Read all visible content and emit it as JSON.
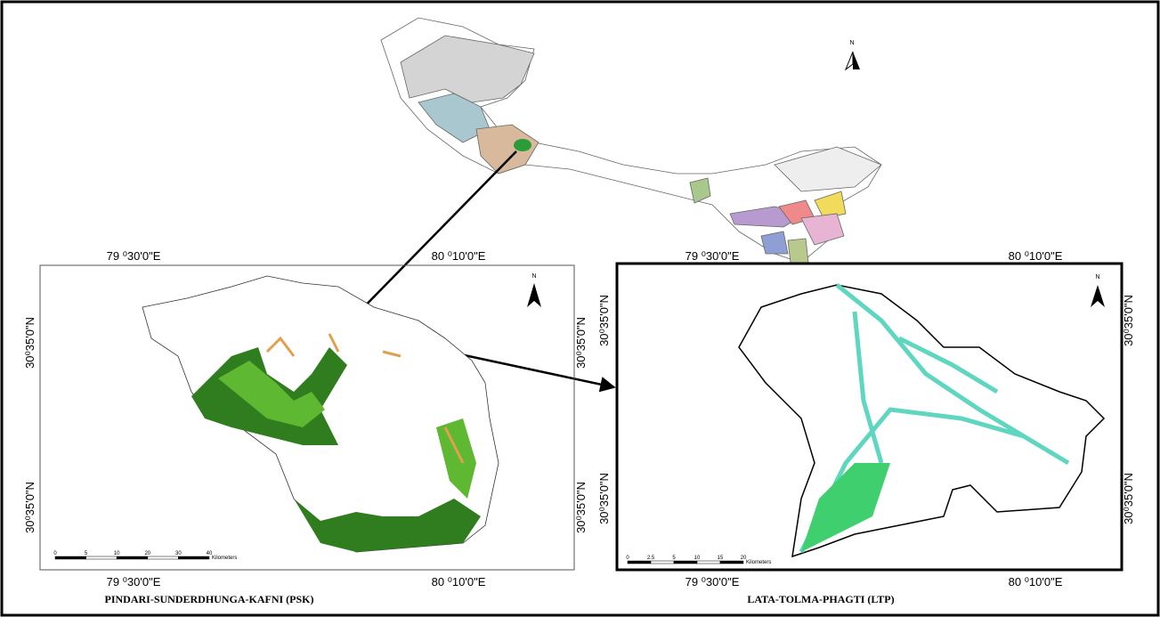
{
  "index_map": {
    "north": "N"
  },
  "left_map": {
    "top_labels": [
      "79 ⁰30'0\"E",
      "80 ⁰10'0\"E"
    ],
    "bottom_labels": [
      "79 ⁰30'0\"E",
      "80 ⁰10'0\"E"
    ],
    "left_labels": [
      "30⁰35'0\"N",
      "30⁰35'0\"N"
    ],
    "right_labels": [
      "30⁰35'0\"N",
      "30⁰35'0\"N"
    ],
    "scale_ticks": [
      "0",
      "5",
      "10",
      "20",
      "30",
      "40"
    ],
    "scale_unit": "Kilometers",
    "north": "N",
    "caption": "PINDARI-SUNDERDHUNGA-KAFNI (PSK)"
  },
  "right_map": {
    "top_labels": [
      "79 ⁰30'0\"E",
      "80 ⁰10'0\"E"
    ],
    "bottom_labels": [
      "79 ⁰30'0\"E",
      "80 ⁰10'0\"E"
    ],
    "left_labels": [
      "30⁰35'0\"N",
      "30⁰35'0\"N"
    ],
    "right_labels": [
      "30⁰35'0\"N",
      "30⁰35'0\"N"
    ],
    "scale_ticks": [
      "0",
      "2.5",
      "5",
      "10",
      "15",
      "20"
    ],
    "scale_unit": "Kilometers",
    "north": "N",
    "caption": "LATA-TOLMA-PHAGTI (LTP)"
  }
}
